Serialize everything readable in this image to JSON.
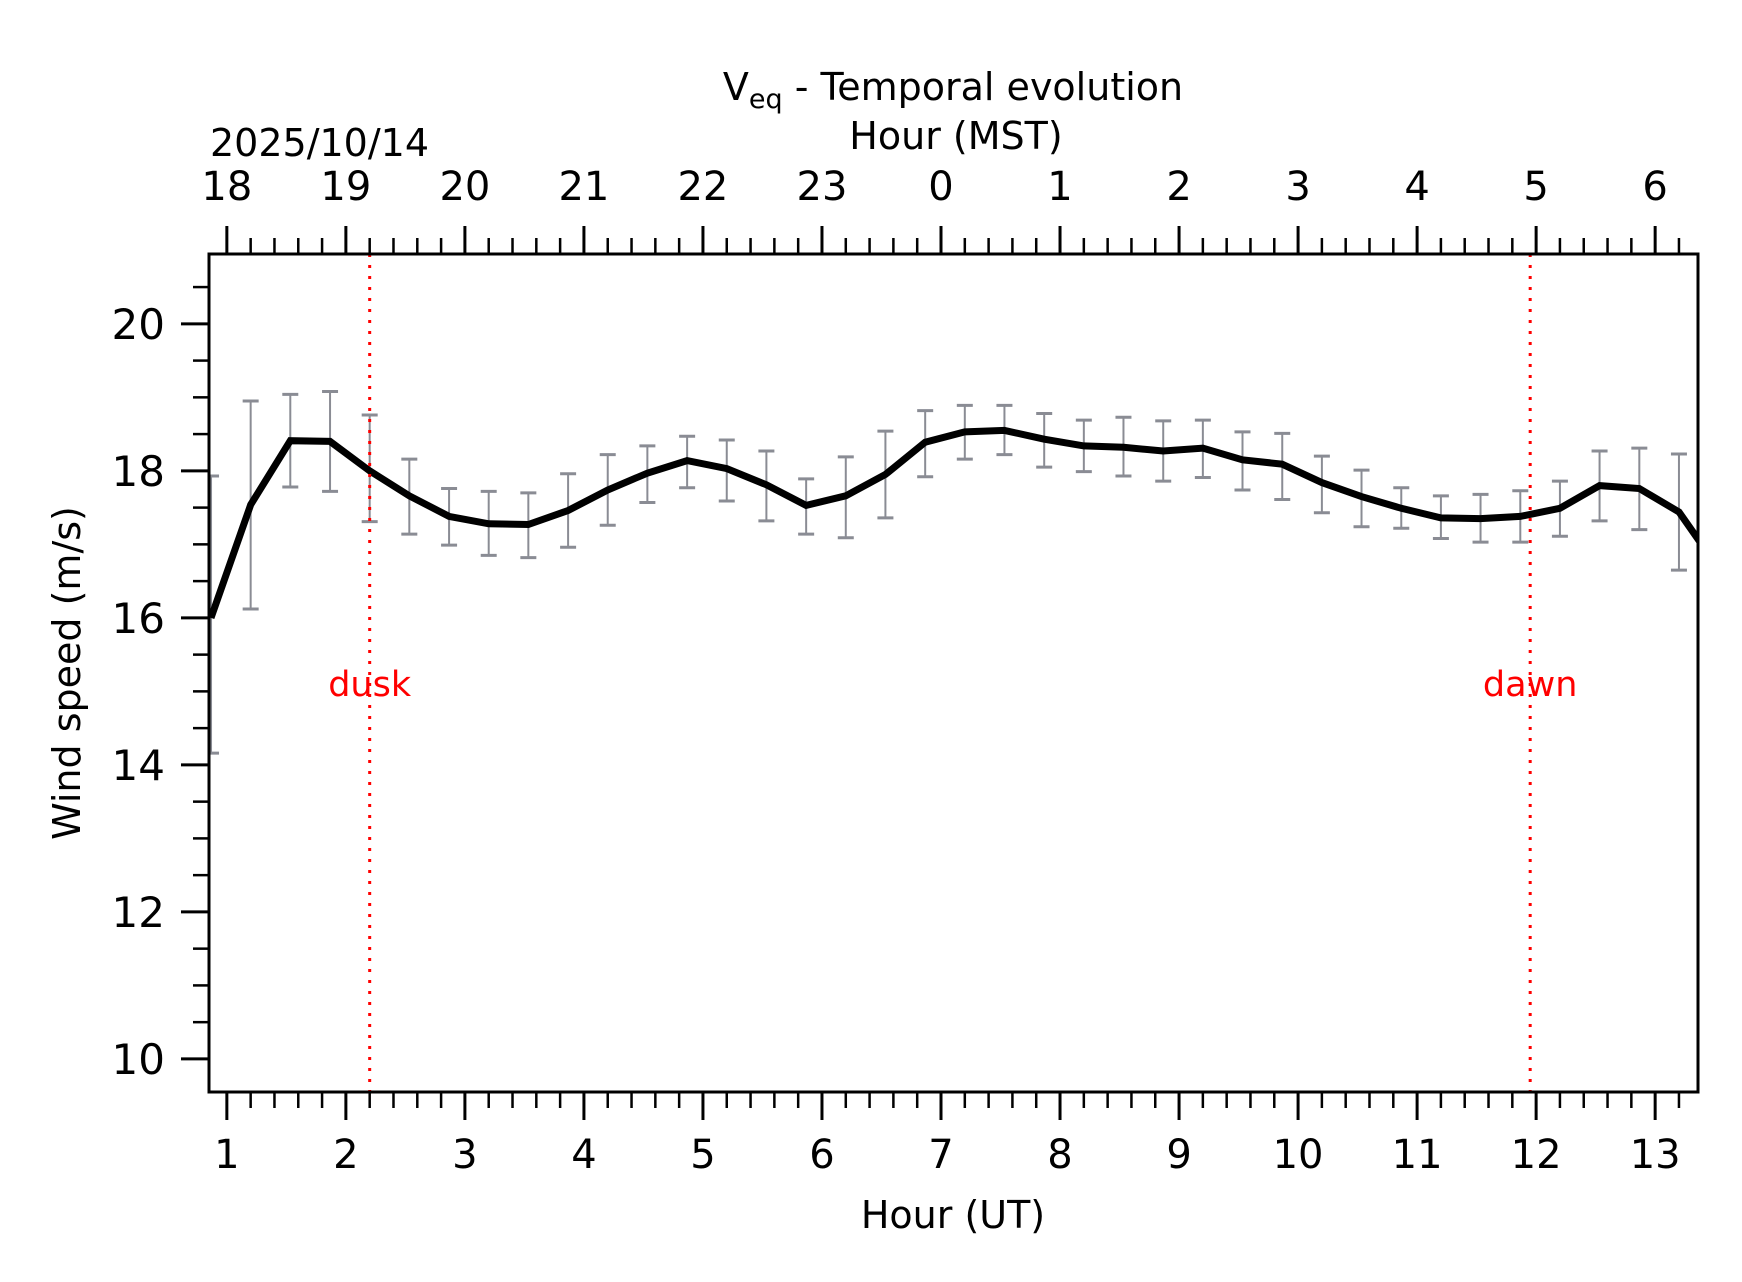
{
  "chart_data": {
    "type": "line",
    "title": "V",
    "title_subscript": "eq",
    "title_suffix": " - Temporal evolution",
    "xlabel": "Hour (UT)",
    "ylabel": "Wind speed (m/s)",
    "top_xlabel": "Hour (MST)",
    "date_label": "2025/10/14",
    "xlim": [
      0.85,
      13.36
    ],
    "ylim": [
      9.55,
      20.95
    ],
    "grid": false,
    "legend": "none",
    "x_ticks": [
      1,
      2,
      3,
      4,
      5,
      6,
      7,
      8,
      9,
      10,
      11,
      12,
      13
    ],
    "x_tick_labels": [
      "1",
      "2",
      "3",
      "4",
      "5",
      "6",
      "7",
      "8",
      "9",
      "10",
      "11",
      "12",
      "13"
    ],
    "x_minor_step": 0.2,
    "top_ticks": [
      1,
      2,
      3,
      4,
      5,
      6,
      7,
      8,
      9,
      10,
      11,
      12,
      13
    ],
    "top_tick_labels": [
      "18",
      "19",
      "20",
      "21",
      "22",
      "23",
      "0",
      "1",
      "2",
      "3",
      "4",
      "5",
      "6"
    ],
    "y_ticks": [
      10,
      12,
      14,
      16,
      18,
      20
    ],
    "y_tick_labels": [
      "10",
      "12",
      "14",
      "16",
      "18",
      "20"
    ],
    "y_minor_step": 0.5,
    "colors": {
      "line": "#000000",
      "errorbar": "#8a8c94",
      "twilight": "#ff0000",
      "axes": "#000000"
    },
    "annotations": [
      {
        "label": "dusk",
        "x": 2.2,
        "y": 15.1
      },
      {
        "label": "dawn",
        "x": 11.95,
        "y": 15.1
      }
    ],
    "vlines": [
      {
        "name": "dusk",
        "x": 2.2,
        "style": "dotted"
      },
      {
        "name": "dawn",
        "x": 11.95,
        "style": "dotted"
      }
    ],
    "series": [
      {
        "name": "Veq",
        "x": [
          0.867,
          1.2,
          1.533,
          1.867,
          2.2,
          2.533,
          2.867,
          3.2,
          3.533,
          3.867,
          4.2,
          4.533,
          4.867,
          5.2,
          5.533,
          5.867,
          6.2,
          6.533,
          6.867,
          7.2,
          7.533,
          7.867,
          8.2,
          8.533,
          8.867,
          9.2,
          9.533,
          9.867,
          10.2,
          10.533,
          10.867,
          11.2,
          11.533,
          11.867,
          12.2,
          12.533,
          12.867,
          13.2,
          13.533
        ],
        "values": [
          16.0,
          17.54,
          18.41,
          18.4,
          18.0,
          17.66,
          17.38,
          17.28,
          17.27,
          17.46,
          17.74,
          17.97,
          18.14,
          18.03,
          17.81,
          17.53,
          17.66,
          17.95,
          18.39,
          18.53,
          18.55,
          18.43,
          18.34,
          18.32,
          18.27,
          18.31,
          18.15,
          18.09,
          17.84,
          17.65,
          17.49,
          17.36,
          17.35,
          17.38,
          17.49,
          17.8,
          17.76,
          17.44,
          16.67
        ],
        "err_low": [
          14.16,
          16.12,
          17.78,
          17.72,
          17.31,
          17.14,
          16.99,
          16.85,
          16.82,
          16.96,
          17.26,
          17.57,
          17.77,
          17.59,
          17.32,
          17.14,
          17.09,
          17.36,
          17.92,
          18.16,
          18.22,
          18.05,
          17.99,
          17.93,
          17.86,
          17.91,
          17.74,
          17.61,
          17.43,
          17.24,
          17.22,
          17.08,
          17.03,
          17.03,
          17.11,
          17.32,
          17.2,
          16.65,
          null
        ],
        "err_high": [
          17.93,
          18.95,
          19.04,
          19.08,
          18.76,
          18.16,
          17.76,
          17.72,
          17.7,
          17.96,
          18.22,
          18.34,
          18.47,
          18.42,
          18.27,
          17.89,
          18.19,
          18.54,
          18.82,
          18.89,
          18.89,
          18.78,
          18.69,
          18.73,
          18.68,
          18.69,
          18.53,
          18.51,
          18.2,
          18.01,
          17.77,
          17.66,
          17.68,
          17.73,
          17.86,
          18.27,
          18.31,
          18.23,
          null
        ]
      }
    ]
  }
}
